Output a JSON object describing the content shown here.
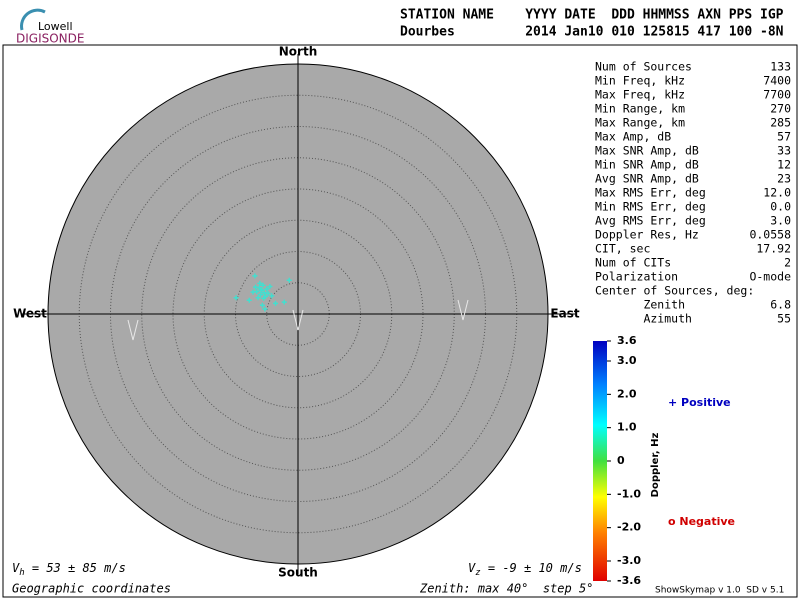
{
  "logo": {
    "top": "Lowell",
    "bottom": "DIGISONDE"
  },
  "header": {
    "line1": "STATION NAME    YYYY DATE  DDD HHMMSS AXN PPS IGP",
    "line2": "Dourbes         2014 Jan10 010 125815 417 100 -8N"
  },
  "chart_data": {
    "type": "skymap",
    "directions": {
      "north": "North",
      "south": "South",
      "west": "West",
      "east": "East"
    },
    "zenith_max": 40,
    "zenith_step": 5,
    "points_color": "#40e0d0",
    "points": {
      "east": [
        -5.8,
        -6.2,
        -5.4,
        -6.6,
        -5.0,
        -6.0,
        -5.6,
        -6.8,
        -4.8,
        -5.2,
        -6.4,
        -5.9,
        -7.2,
        -4.5,
        -5.5,
        -6.1,
        -9.9,
        -1.4,
        -6.9,
        -2.2,
        -5.3,
        -7.8,
        -3.6,
        -4.2,
        -5.7
      ],
      "north": [
        3.8,
        4.2,
        3.4,
        3.6,
        4.0,
        3.1,
        4.6,
        4.3,
        3.3,
        2.8,
        2.6,
        3.9,
        3.5,
        4.4,
        2.5,
        4.9,
        2.6,
        5.4,
        6.1,
        1.9,
        0.8,
        2.2,
        1.7,
        2.9,
        1.4
      ]
    },
    "colorbar": {
      "title": "Doppler, Hz",
      "ylim": [
        -3.6,
        3.6
      ],
      "yticks": [
        {
          "value": 3.6,
          "label": "3.6"
        },
        {
          "value": 3.0,
          "label": "3.0"
        },
        {
          "value": 2.0,
          "label": "2.0"
        },
        {
          "value": 1.0,
          "label": "1.0"
        },
        0,
        {
          "value": -1.0,
          "label": "-1.0"
        },
        {
          "value": -2.0,
          "label": "-2.0"
        },
        {
          "value": -3.0,
          "label": "-3.0"
        },
        {
          "value": -3.6,
          "label": "-3.6"
        }
      ]
    },
    "legend": {
      "positive": "+ Positive",
      "negative": "o Negative"
    }
  },
  "stats": [
    [
      "Num of Sources",
      "133"
    ],
    [
      "Min Freq, kHz",
      "7400"
    ],
    [
      "Max Freq, kHz",
      "7700"
    ],
    [
      "Min Range, km",
      "270"
    ],
    [
      "Max Range, km",
      "285"
    ],
    [
      "Max Amp, dB",
      "57"
    ],
    [
      "Max SNR Amp, dB",
      "33"
    ],
    [
      "Min SNR Amp, dB",
      "12"
    ],
    [
      "Avg SNR Amp, dB",
      "23"
    ],
    [
      "Max RMS Err, deg",
      "12.0"
    ],
    [
      "Min RMS Err, deg",
      "0.0"
    ],
    [
      "Avg RMS Err, deg",
      "3.0"
    ],
    [
      "Doppler Res, Hz",
      "0.0558"
    ],
    [
      "CIT, sec",
      "17.92"
    ],
    [
      "Num of CITs",
      "2"
    ],
    [
      "Polarization",
      "O-mode"
    ],
    [
      "Center of Sources, deg:",
      ""
    ],
    [
      "       Zenith",
      "6.8"
    ],
    [
      "       Azimuth",
      "55"
    ]
  ],
  "footer": {
    "vh": {
      "symbol": "V",
      "sub": "h",
      "text": " = 53 ± 85 m/s"
    },
    "vz": {
      "symbol": "V",
      "sub": "z",
      "text": " = -9 ± 10 m/s"
    },
    "coords": "Geographic coordinates",
    "zenith": "Zenith: max 40°  step 5°",
    "version": "ShowSkymap v 1.0  SD v 5.1"
  }
}
